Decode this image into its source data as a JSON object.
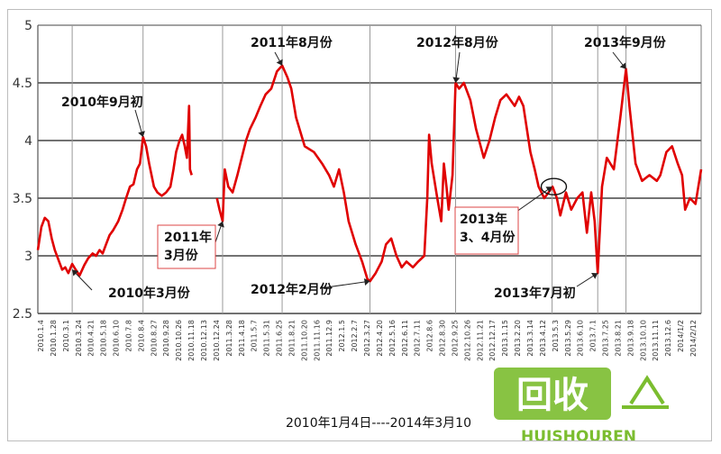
{
  "chart_data": {
    "type": "line",
    "ylim": [
      2.5,
      5
    ],
    "yticks": [
      "2.5",
      "3",
      "3.5",
      "4",
      "4.5",
      "5"
    ],
    "grid": true,
    "x_range_label": "2010年1月4日----2014年3月10",
    "series_color": "#e00000",
    "x_tick_labels": [
      "2010.1.4",
      "2010.1.28",
      "2010.3.1",
      "2010.3.24",
      "2010.4.21",
      "2010.5.18",
      "2010.6.10",
      "2010.7.8",
      "2010.8.4",
      "2010.8.27",
      "2010.9.28",
      "2010.10.26",
      "2010.11.18",
      "2010.12.13",
      "2010.12.24",
      "2011.3.28",
      "2011.4.18",
      "2011.5.7",
      "2011.5.31",
      "2011.6.25",
      "2011.8.21",
      "2011.10.20",
      "2011.11.16",
      "2011.12.9",
      "2012.1.5",
      "2012.2.7",
      "2012.3.27",
      "2012.4.20",
      "2012.5.16",
      "2012.6.11",
      "2012.7.11",
      "2012.8.6",
      "2012.8.30",
      "2012.9.25",
      "2012.10.26",
      "2012.11.21",
      "2012.12.17",
      "2013.1.15",
      "2013.2.20",
      "2013.3.14",
      "2013.4.12",
      "2013.5.3",
      "2013.5.29",
      "2013.6.10",
      "2013.7.1",
      "2013.7.25",
      "2013.8.21",
      "2013.9.18",
      "2013.10.10",
      "2013.11.11",
      "2013.12.6",
      "2014/1/2",
      "2014/2/12"
    ],
    "points": [
      [
        "2010-01-04",
        3.05
      ],
      [
        "2010-01-12",
        3.25
      ],
      [
        "2010-01-20",
        3.33
      ],
      [
        "2010-01-28",
        3.3
      ],
      [
        "2010-02-05",
        3.15
      ],
      [
        "2010-02-12",
        3.05
      ],
      [
        "2010-02-22",
        2.95
      ],
      [
        "2010-03-01",
        2.88
      ],
      [
        "2010-03-08",
        2.9
      ],
      [
        "2010-03-15",
        2.85
      ],
      [
        "2010-03-24",
        2.93
      ],
      [
        "2010-04-01",
        2.88
      ],
      [
        "2010-04-10",
        2.83
      ],
      [
        "2010-04-21",
        2.92
      ],
      [
        "2010-04-30",
        2.98
      ],
      [
        "2010-05-10",
        3.02
      ],
      [
        "2010-05-18",
        3.0
      ],
      [
        "2010-05-26",
        3.05
      ],
      [
        "2010-06-02",
        3.02
      ],
      [
        "2010-06-10",
        3.1
      ],
      [
        "2010-06-18",
        3.18
      ],
      [
        "2010-06-26",
        3.22
      ],
      [
        "2010-07-08",
        3.3
      ],
      [
        "2010-07-18",
        3.4
      ],
      [
        "2010-07-26",
        3.5
      ],
      [
        "2010-08-04",
        3.6
      ],
      [
        "2010-08-12",
        3.62
      ],
      [
        "2010-08-20",
        3.75
      ],
      [
        "2010-08-27",
        3.8
      ],
      [
        "2010-09-03",
        4.03
      ],
      [
        "2010-09-10",
        3.95
      ],
      [
        "2010-09-17",
        3.8
      ],
      [
        "2010-09-28",
        3.6
      ],
      [
        "2010-10-06",
        3.55
      ],
      [
        "2010-10-16",
        3.52
      ],
      [
        "2010-10-26",
        3.55
      ],
      [
        "2010-11-05",
        3.6
      ],
      [
        "2010-11-12",
        3.75
      ],
      [
        "2010-11-18",
        3.9
      ],
      [
        "2010-11-26",
        4.0
      ],
      [
        "2010-12-02",
        4.05
      ],
      [
        "2010-12-08",
        3.95
      ],
      [
        "2010-12-13",
        3.85
      ],
      [
        "2010-12-18",
        4.3
      ],
      [
        "2010-12-20",
        3.75
      ],
      [
        "2010-12-24",
        3.7
      ],
      [
        "2011-02-20",
        3.5
      ],
      [
        "2011-02-26",
        3.4
      ],
      [
        "2011-03-05",
        3.3
      ],
      [
        "2011-03-10",
        3.75
      ],
      [
        "2011-03-18",
        3.6
      ],
      [
        "2011-03-28",
        3.55
      ],
      [
        "2011-04-08",
        3.7
      ],
      [
        "2011-04-18",
        3.85
      ],
      [
        "2011-04-28",
        4.0
      ],
      [
        "2011-05-07",
        4.1
      ],
      [
        "2011-05-20",
        4.2
      ],
      [
        "2011-05-31",
        4.3
      ],
      [
        "2011-06-12",
        4.4
      ],
      [
        "2011-06-25",
        4.45
      ],
      [
        "2011-07-08",
        4.6
      ],
      [
        "2011-07-20",
        4.65
      ],
      [
        "2011-08-01",
        4.55
      ],
      [
        "2011-08-10",
        4.45
      ],
      [
        "2011-08-21",
        4.2
      ],
      [
        "2011-09-10",
        3.95
      ],
      [
        "2011-10-01",
        3.9
      ],
      [
        "2011-10-20",
        3.8
      ],
      [
        "2011-11-05",
        3.7
      ],
      [
        "2011-11-16",
        3.6
      ],
      [
        "2011-11-28",
        3.75
      ],
      [
        "2011-12-09",
        3.55
      ],
      [
        "2011-12-20",
        3.3
      ],
      [
        "2012-01-05",
        3.1
      ],
      [
        "2012-01-20",
        2.95
      ],
      [
        "2012-02-01",
        2.8
      ],
      [
        "2012-02-07",
        2.78
      ],
      [
        "2012-02-20",
        2.85
      ],
      [
        "2012-03-05",
        2.95
      ],
      [
        "2012-03-15",
        3.1
      ],
      [
        "2012-03-27",
        3.15
      ],
      [
        "2012-04-08",
        3.0
      ],
      [
        "2012-04-20",
        2.9
      ],
      [
        "2012-05-01",
        2.95
      ],
      [
        "2012-05-16",
        2.9
      ],
      [
        "2012-05-28",
        2.95
      ],
      [
        "2012-06-11",
        3.0
      ],
      [
        "2012-06-18",
        3.5
      ],
      [
        "2012-06-22",
        4.05
      ],
      [
        "2012-06-28",
        3.8
      ],
      [
        "2012-07-11",
        3.5
      ],
      [
        "2012-07-20",
        3.3
      ],
      [
        "2012-07-26",
        3.8
      ],
      [
        "2012-08-01",
        3.6
      ],
      [
        "2012-08-06",
        3.4
      ],
      [
        "2012-08-15",
        3.7
      ],
      [
        "2012-08-22",
        4.5
      ],
      [
        "2012-08-30",
        4.45
      ],
      [
        "2012-09-10",
        4.5
      ],
      [
        "2012-09-25",
        4.35
      ],
      [
        "2012-10-08",
        4.1
      ],
      [
        "2012-10-26",
        3.85
      ],
      [
        "2012-11-08",
        4.0
      ],
      [
        "2012-11-21",
        4.2
      ],
      [
        "2012-12-03",
        4.35
      ],
      [
        "2012-12-17",
        4.4
      ],
      [
        "2013-01-05",
        4.3
      ],
      [
        "2013-01-15",
        4.38
      ],
      [
        "2013-01-25",
        4.3
      ],
      [
        "2013-02-10",
        3.9
      ],
      [
        "2013-02-20",
        3.75
      ],
      [
        "2013-03-01",
        3.6
      ],
      [
        "2013-03-14",
        3.5
      ],
      [
        "2013-03-24",
        3.55
      ],
      [
        "2013-04-02",
        3.6
      ],
      [
        "2013-04-12",
        3.5
      ],
      [
        "2013-04-20",
        3.35
      ],
      [
        "2013-05-03",
        3.55
      ],
      [
        "2013-05-15",
        3.4
      ],
      [
        "2013-05-29",
        3.5
      ],
      [
        "2013-06-10",
        3.55
      ],
      [
        "2013-06-20",
        3.2
      ],
      [
        "2013-06-30",
        3.55
      ],
      [
        "2013-07-08",
        3.3
      ],
      [
        "2013-07-15",
        2.85
      ],
      [
        "2013-07-25",
        3.6
      ],
      [
        "2013-08-05",
        3.85
      ],
      [
        "2013-08-21",
        3.75
      ],
      [
        "2013-09-05",
        4.2
      ],
      [
        "2013-09-18",
        4.62
      ],
      [
        "2013-09-26",
        4.3
      ],
      [
        "2013-10-10",
        3.8
      ],
      [
        "2013-10-25",
        3.65
      ],
      [
        "2013-11-11",
        3.7
      ],
      [
        "2013-11-28",
        3.65
      ],
      [
        "2013-12-06",
        3.7
      ],
      [
        "2013-12-20",
        3.9
      ],
      [
        "2014-01-02",
        3.95
      ],
      [
        "2014-01-15",
        3.8
      ],
      [
        "2014-01-25",
        3.7
      ],
      [
        "2014-02-01",
        3.4
      ],
      [
        "2014-02-12",
        3.5
      ],
      [
        "2014-02-25",
        3.45
      ],
      [
        "2014-03-10",
        3.75
      ]
    ],
    "annotations": [
      {
        "text": "2010年3月份",
        "date": "2010-03-24",
        "value": 2.88,
        "boxed": false
      },
      {
        "text": "2010年9月初",
        "date": "2010-09-03",
        "value": 4.03,
        "boxed": false
      },
      {
        "text": "2011年",
        "text2": "3月份",
        "date": "2011-03-05",
        "value": 3.3,
        "boxed": true
      },
      {
        "text": "2011年8月份",
        "date": "2011-07-20",
        "value": 4.65,
        "boxed": false
      },
      {
        "text": "2012年2月份",
        "date": "2012-02-07",
        "value": 2.78,
        "boxed": false
      },
      {
        "text": "2012年8月份",
        "date": "2012-08-22",
        "value": 4.5,
        "boxed": false
      },
      {
        "text": "2013年",
        "text2": "3、4月份",
        "date": "2013-04-01",
        "value": 3.6,
        "boxed": true
      },
      {
        "text": "2013年7月初",
        "date": "2013-07-15",
        "value": 2.85,
        "boxed": false
      },
      {
        "text": "2013年9月份",
        "date": "2013-09-18",
        "value": 4.62,
        "boxed": false
      }
    ]
  },
  "watermark": {
    "main": "回收",
    "sub": "HUISHOUREN",
    "icon": "recycle-arrow-icon",
    "color": "#7bbd2f"
  }
}
